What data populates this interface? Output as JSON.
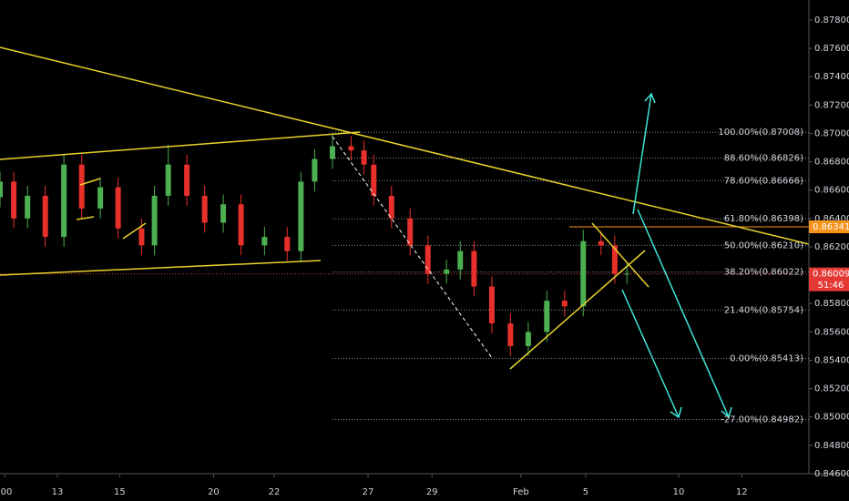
{
  "chart_data": {
    "type": "candlestick",
    "x": [
      0,
      1.7,
      3.4,
      5.6,
      7.9,
      10.1,
      12.4,
      14.6,
      17.5,
      19.1,
      20.8,
      23.1,
      25.3,
      27.6,
      29.8,
      32.7,
      35.5,
      37.2,
      38.9,
      41.1,
      43.4,
      45.0,
      46.2,
      48.4,
      50.7,
      52.9,
      55.2,
      56.9,
      58.6,
      60.8,
      63.1,
      65.3,
      67.6,
      69.8,
      72.1,
      74.3,
      76.0,
      77.5
    ],
    "open": [
      0.8655,
      0.8666,
      0.864,
      0.8656,
      0.8627,
      0.8678,
      0.8647,
      0.8662,
      0.8633,
      0.8621,
      0.8656,
      0.8678,
      0.8656,
      0.8637,
      0.865,
      0.8621,
      0.8627,
      0.8617,
      0.8666,
      0.8682,
      0.8691,
      0.8688,
      0.8678,
      0.8656,
      0.864,
      0.8621,
      0.8601,
      0.8604,
      0.8617,
      0.8592,
      0.8566,
      0.855,
      0.856,
      0.8582,
      0.8578,
      0.8624,
      0.8621,
      0.8601
    ],
    "high": [
      0.8673,
      0.8673,
      0.8663,
      0.8663,
      0.8685,
      0.8685,
      0.8669,
      0.8669,
      0.864,
      0.8663,
      0.8692,
      0.8685,
      0.8663,
      0.8657,
      0.8657,
      0.8634,
      0.8634,
      0.8673,
      0.8689,
      0.87,
      0.8698,
      0.8695,
      0.8685,
      0.8663,
      0.8647,
      0.8628,
      0.8611,
      0.8624,
      0.8624,
      0.8599,
      0.8573,
      0.8567,
      0.8589,
      0.8589,
      0.8632,
      0.8631,
      0.8628,
      0.8608
    ],
    "low": [
      0.8648,
      0.8633,
      0.8633,
      0.862,
      0.862,
      0.864,
      0.864,
      0.8626,
      0.8614,
      0.8614,
      0.8649,
      0.8649,
      0.863,
      0.863,
      0.8614,
      0.8614,
      0.861,
      0.861,
      0.8659,
      0.8675,
      0.8681,
      0.8671,
      0.8649,
      0.8633,
      0.8614,
      0.8594,
      0.8594,
      0.8597,
      0.8585,
      0.8559,
      0.8543,
      0.8543,
      0.8553,
      0.8571,
      0.8571,
      0.8614,
      0.8594,
      0.8594
    ],
    "close": [
      0.8666,
      0.864,
      0.8656,
      0.8627,
      0.8678,
      0.8647,
      0.8662,
      0.8633,
      0.8621,
      0.8656,
      0.8678,
      0.8656,
      0.8637,
      0.865,
      0.8621,
      0.8627,
      0.8617,
      0.8666,
      0.8682,
      0.8691,
      0.8688,
      0.8678,
      0.8656,
      0.864,
      0.8621,
      0.8601,
      0.8604,
      0.8617,
      0.8592,
      0.8566,
      0.855,
      0.856,
      0.8582,
      0.8578,
      0.8624,
      0.8621,
      0.8601,
      0.8601
    ],
    "up_color": "#4caf50",
    "down_color": "#e8302b",
    "xlim": [
      0,
      100
    ],
    "xticks": [
      {
        "value": 0.6,
        "label": ":00"
      },
      {
        "value": 7.1,
        "label": "13"
      },
      {
        "value": 14.8,
        "label": "15"
      },
      {
        "value": 26.4,
        "label": "20"
      },
      {
        "value": 33.9,
        "label": "22"
      },
      {
        "value": 45.5,
        "label": "27"
      },
      {
        "value": 53.4,
        "label": "29"
      },
      {
        "value": 64.4,
        "label": "Feb"
      },
      {
        "value": 72.4,
        "label": "5"
      },
      {
        "value": 83.9,
        "label": "10"
      },
      {
        "value": 91.7,
        "label": "12"
      }
    ],
    "ylim": [
      0.846,
      0.87941
    ],
    "yticks": [
      {
        "value": 0.846,
        "label": "0.84600"
      },
      {
        "value": 0.848,
        "label": "0.84800"
      },
      {
        "value": 0.85,
        "label": "0.85000"
      },
      {
        "value": 0.852,
        "label": "0.85200"
      },
      {
        "value": 0.854,
        "label": "0.85400"
      },
      {
        "value": 0.856,
        "label": "0.85600"
      },
      {
        "value": 0.858,
        "label": "0.85800"
      },
      {
        "value": 0.86,
        "label": "0.86000"
      },
      {
        "value": 0.862,
        "label": "0.86200"
      },
      {
        "value": 0.864,
        "label": "0.86400"
      },
      {
        "value": 0.866,
        "label": "0.86600"
      },
      {
        "value": 0.868,
        "label": "0.86800"
      },
      {
        "value": 0.87,
        "label": "0.87000"
      },
      {
        "value": 0.872,
        "label": "0.87200"
      },
      {
        "value": 0.874,
        "label": "0.87400"
      },
      {
        "value": 0.876,
        "label": "0.87600"
      },
      {
        "value": 0.878,
        "label": "0.87800"
      }
    ],
    "fib_levels": [
      {
        "value": 0.87008,
        "label": "100.00%(0.87008)"
      },
      {
        "value": 0.86826,
        "label": "88.60%(0.86826)"
      },
      {
        "value": 0.86666,
        "label": "78.60%(0.86666)"
      },
      {
        "value": 0.86398,
        "label": "61.80%(0.86398)"
      },
      {
        "value": 0.8621,
        "label": "50.00%(0.86210)"
      },
      {
        "value": 0.86022,
        "label": "38.20%(0.86022)"
      },
      {
        "value": 0.85754,
        "label": "21.40%(0.85754)"
      },
      {
        "value": 0.85413,
        "label": "0.00%(0.85413)"
      },
      {
        "value": 0.84982,
        "label": "-27.00%(0.84982)"
      }
    ],
    "price_tags": [
      {
        "value": 0.86341,
        "label": "0.86341",
        "color": "#f7931a"
      },
      {
        "value": 0.86009,
        "label": "0.86009",
        "color": "#e53935"
      }
    ],
    "countdown": "51:46"
  }
}
